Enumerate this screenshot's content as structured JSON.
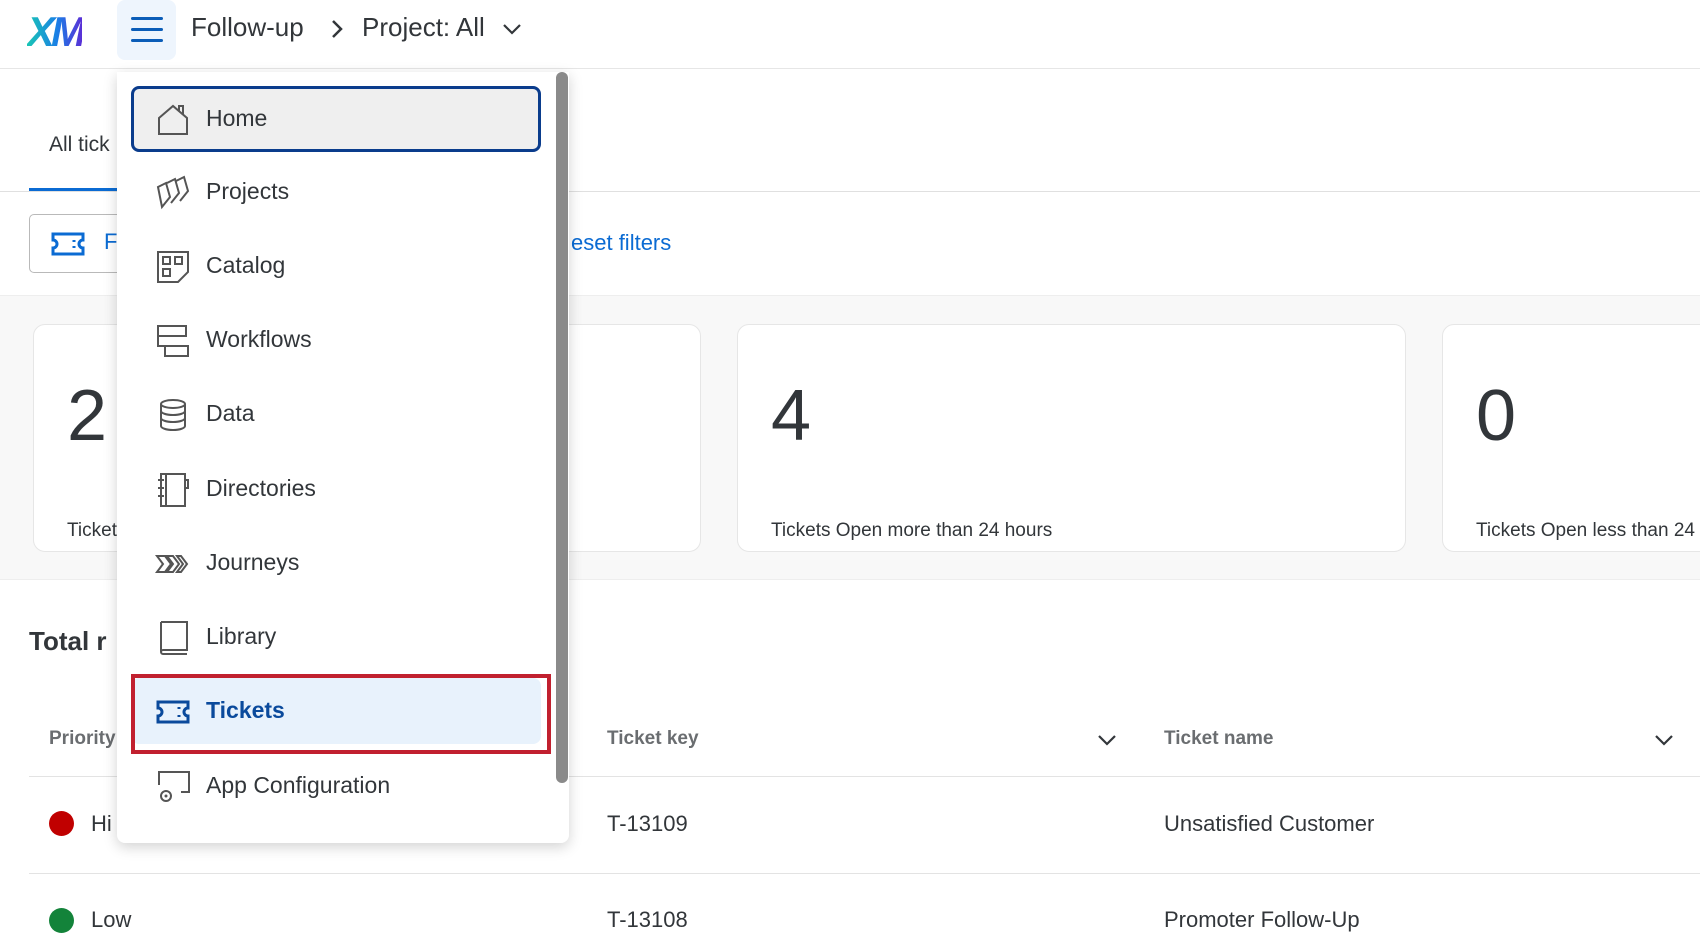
{
  "header": {
    "logo": "XM",
    "breadcrumb": [
      "Follow-up",
      "Project: All"
    ]
  },
  "tabs": {
    "active": "All tick"
  },
  "filters": {
    "filter_label": "F",
    "reset_label": "eset filters"
  },
  "stats": [
    {
      "value": "2",
      "label": "Ticket"
    },
    {
      "value": "4",
      "label": "Tickets Open more than 24 hours"
    },
    {
      "value": "0",
      "label": "Tickets Open less than 24"
    }
  ],
  "table": {
    "title": "Total r",
    "columns": [
      "Priority",
      "Ticket key",
      "Ticket name"
    ],
    "rows": [
      {
        "priority": "Hi",
        "priority_color": "#c00000",
        "key": "T-13109",
        "name": "Unsatisfied Customer"
      },
      {
        "priority": "Low",
        "priority_color": "#13833a",
        "key": "T-13108",
        "name": "Promoter Follow-Up"
      }
    ]
  },
  "menu": {
    "items": [
      {
        "label": "Home",
        "icon": "home-icon"
      },
      {
        "label": "Projects",
        "icon": "projects-icon"
      },
      {
        "label": "Catalog",
        "icon": "catalog-icon"
      },
      {
        "label": "Workflows",
        "icon": "workflows-icon"
      },
      {
        "label": "Data",
        "icon": "database-icon"
      },
      {
        "label": "Directories",
        "icon": "directories-icon"
      },
      {
        "label": "Journeys",
        "icon": "journeys-icon"
      },
      {
        "label": "Library",
        "icon": "library-icon"
      },
      {
        "label": "Tickets",
        "icon": "ticket-icon"
      },
      {
        "label": "App Configuration",
        "icon": "app-config-icon"
      }
    ]
  },
  "colors": {
    "accent": "#0b6bd3",
    "highlight": "#c1202f",
    "menu_focus": "#0a3c8c"
  }
}
